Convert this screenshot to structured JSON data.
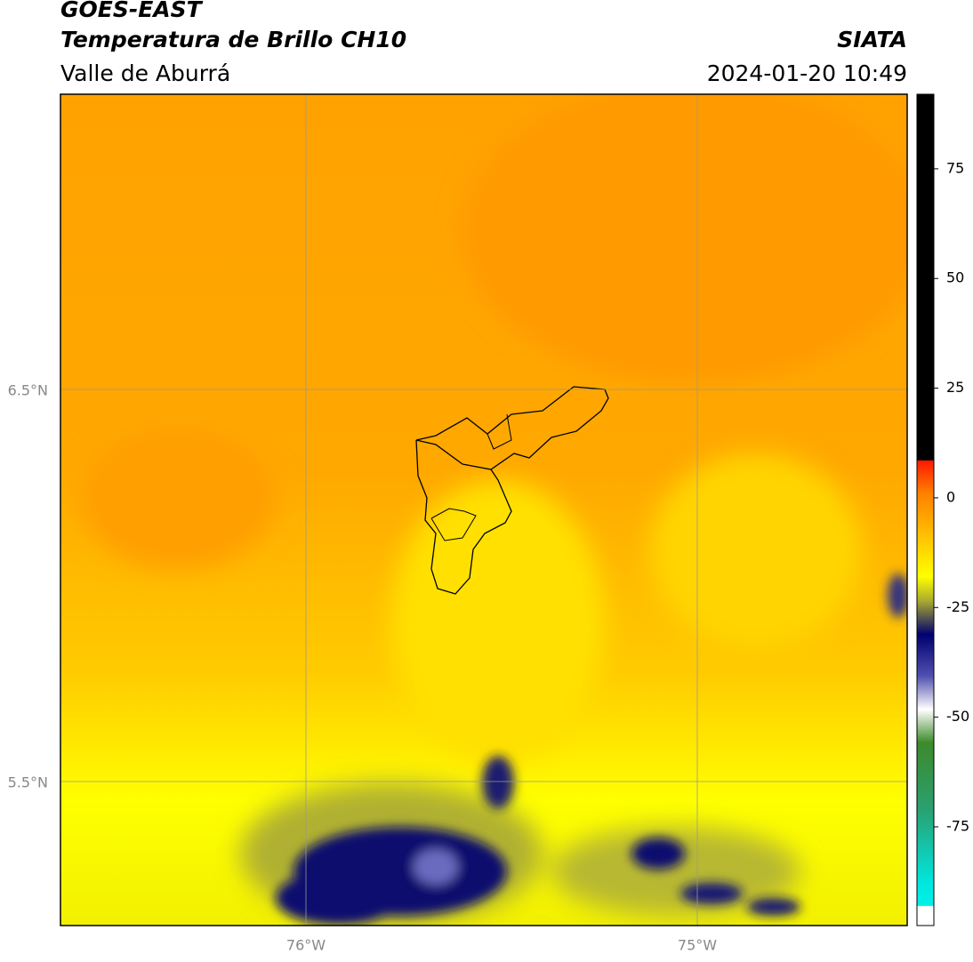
{
  "header": {
    "satellite": "GOES-EAST",
    "product": "Temperatura de Brillo CH10",
    "region": "Valle de Aburrá",
    "agency": "SIATA",
    "datetime": "2024-01-20 10:49"
  },
  "map": {
    "lat_ticks": [
      "6.5°N",
      "5.5°N"
    ],
    "lon_ticks": [
      "76°W",
      "75°W"
    ]
  },
  "colorbar": {
    "range": [
      -97.5,
      92
    ],
    "ticks": [
      75,
      50,
      25,
      0,
      -25,
      -50,
      -75
    ]
  }
}
